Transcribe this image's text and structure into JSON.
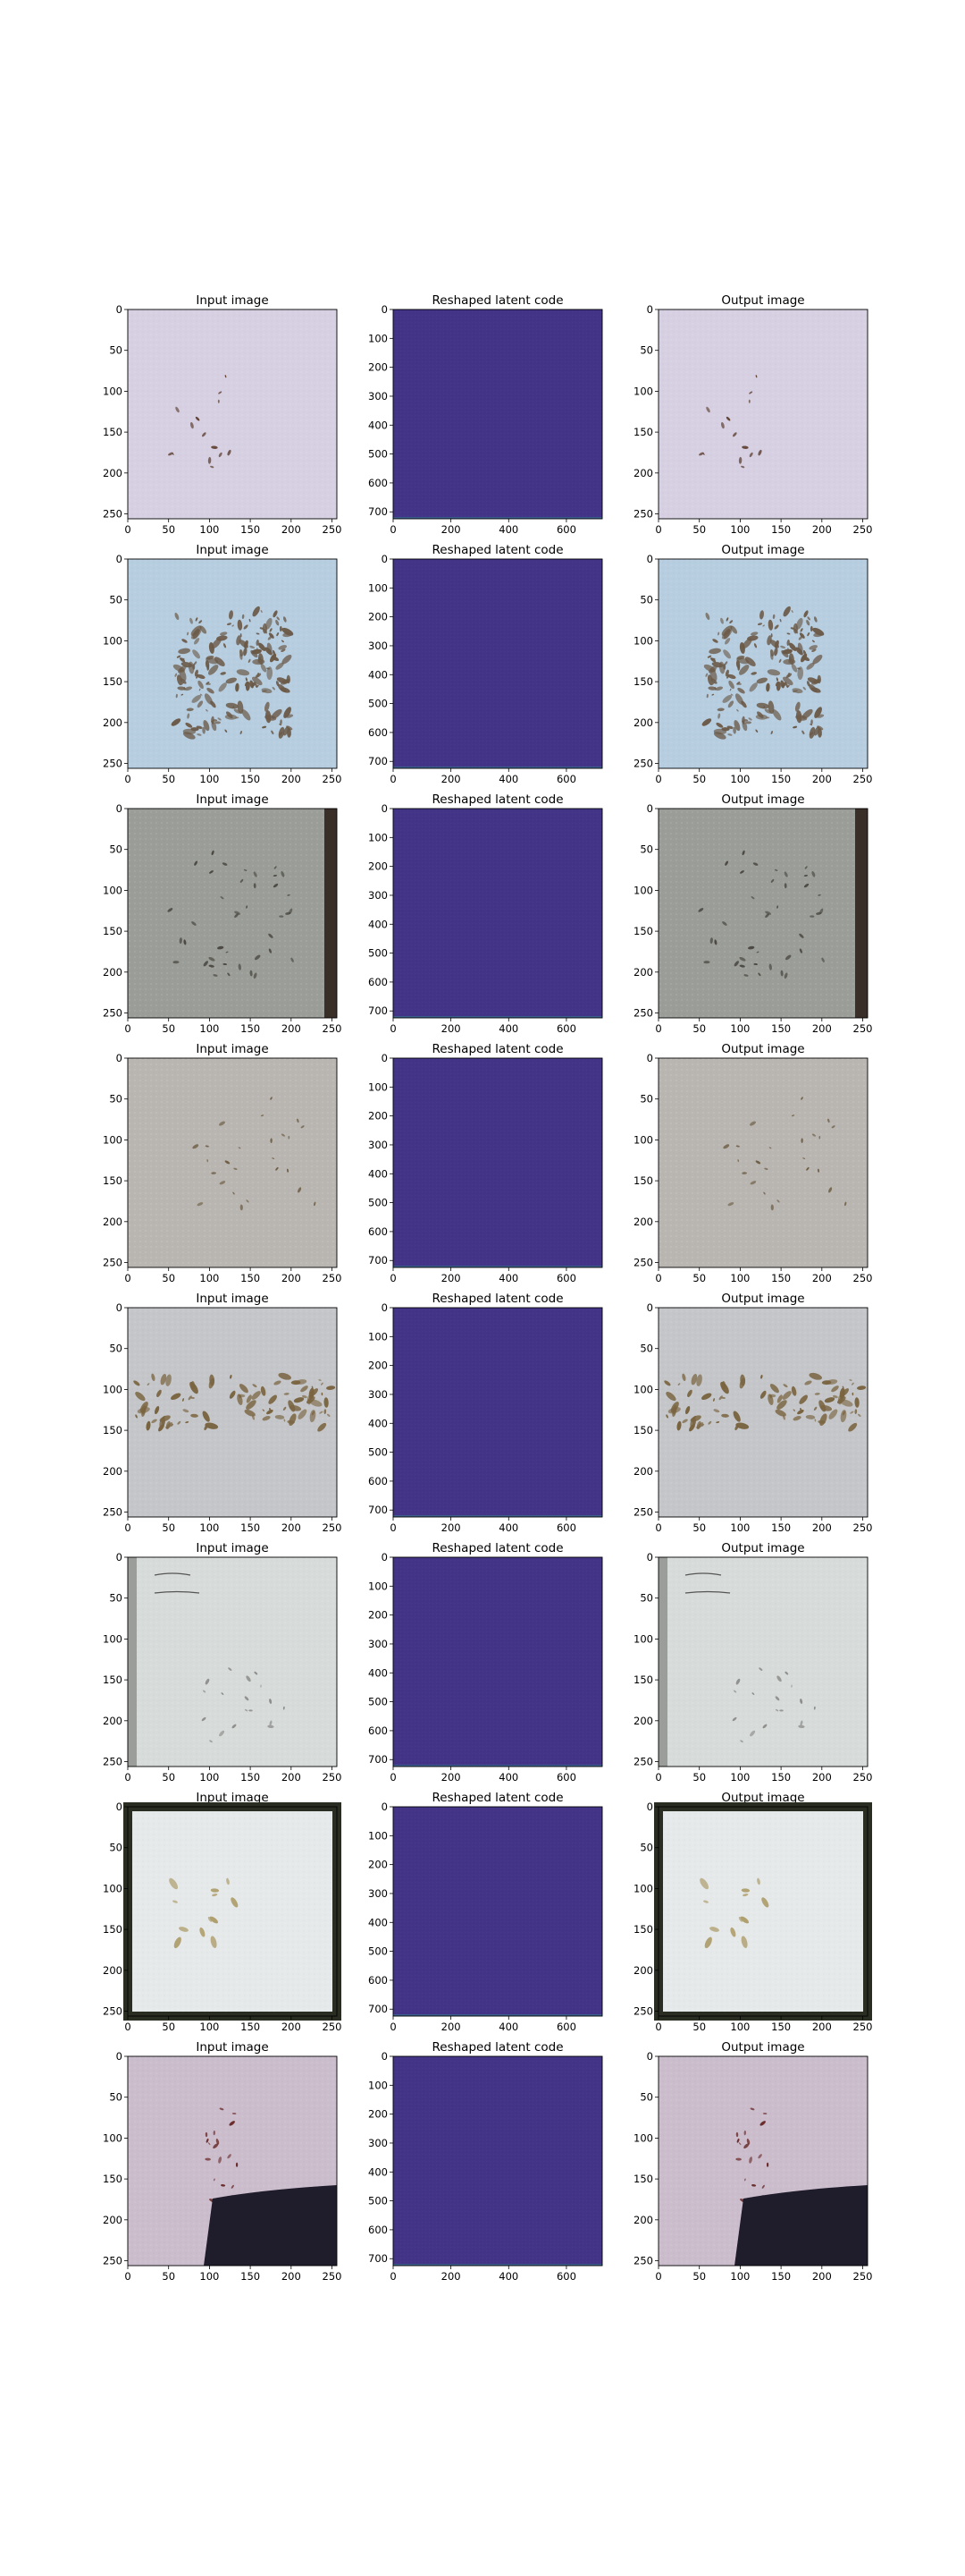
{
  "figure": {
    "panel_titles": [
      "Input image",
      "Reshaped latent code",
      "Output image"
    ]
  },
  "colors": {
    "latent_fill": "#433488",
    "latent_edge_band": "#3b5e8e",
    "axes_frame": "#000000"
  },
  "chart_data": [
    {
      "type": "image-grid",
      "rows": 8,
      "columns": [
        "Input image",
        "Reshaped latent code",
        "Output image"
      ],
      "image_axes": {
        "xticks": [
          0,
          50,
          100,
          150,
          200,
          250
        ],
        "yticks": [
          0,
          50,
          100,
          150,
          200,
          250
        ],
        "xlim": [
          0,
          256
        ],
        "ylim": [
          256,
          0
        ]
      },
      "latent_axes": {
        "xticks": [
          0,
          200,
          400,
          600
        ],
        "yticks": [
          0,
          100,
          200,
          300,
          400,
          500,
          600,
          700
        ],
        "xlim": [
          0,
          724
        ],
        "ylim": [
          724,
          0
        ]
      },
      "row_images": [
        {
          "background": "#d6d0e2",
          "content": "sparse brown seeds on creased lavender paper"
        },
        {
          "background": "#b7cde0",
          "content": "dense cluster of striped seeds on light blue paper"
        },
        {
          "background": "#9a9d98",
          "content": "seeds on crumpled grey paper with dark right edge"
        },
        {
          "background": "#b9b6b2",
          "content": "scattered seeds on grey paper with label strip"
        },
        {
          "background": "#c4c6c9",
          "content": "band of brown seeds across grey paper"
        },
        {
          "background": "#d7dbd9",
          "content": "handwritten label and faint seeds on white paper"
        },
        {
          "background": "#e6e9ea",
          "content": "pale seeds on bright white paper with dark border"
        },
        {
          "background": "#cbbdcc",
          "content": "small seeds along fold of pink paper with dark shadow"
        }
      ]
    }
  ]
}
